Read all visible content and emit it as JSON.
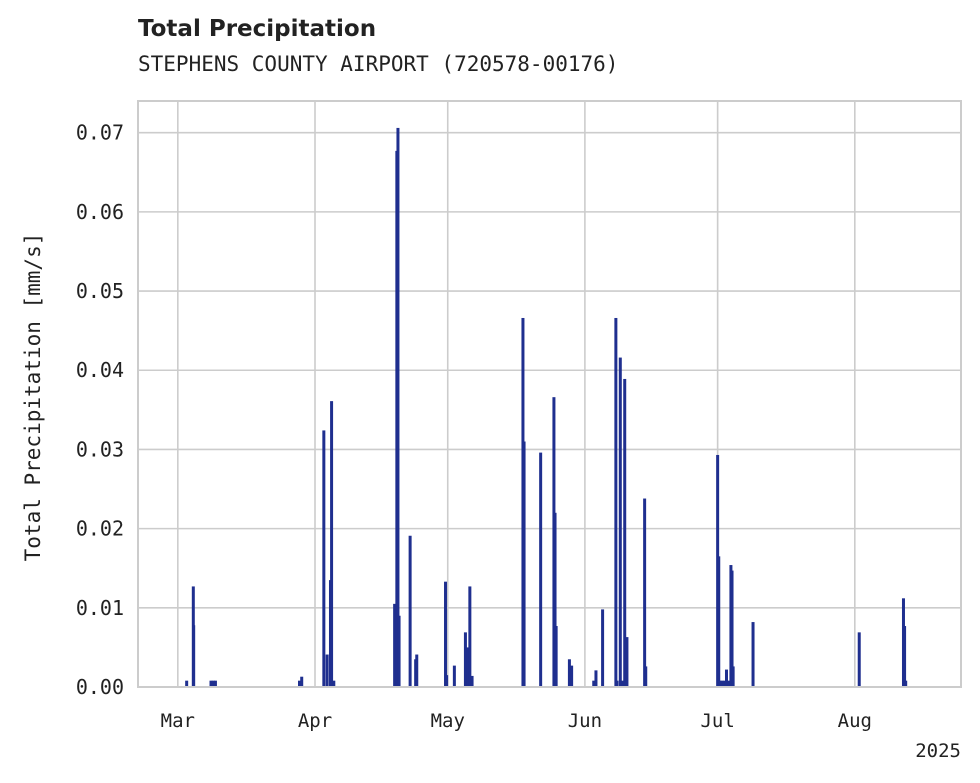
{
  "chart_data": {
    "type": "bar",
    "title": "Total Precipitation",
    "subtitle": "STEPHENS COUNTY AIRPORT (720578-00176)",
    "xlabel": "",
    "ylabel": "Total Precipitation [mm/s]",
    "xlim": [
      "2025-02-20",
      "2025-08-25"
    ],
    "ylim": [
      0,
      0.074
    ],
    "x_ticks": [
      {
        "date": "2025-03-01",
        "label": "Mar"
      },
      {
        "date": "2025-04-01",
        "label": "Apr"
      },
      {
        "date": "2025-05-01",
        "label": "May"
      },
      {
        "date": "2025-06-01",
        "label": "Jun"
      },
      {
        "date": "2025-07-01",
        "label": "Jul"
      },
      {
        "date": "2025-08-01",
        "label": "Aug"
      }
    ],
    "x_offset_label": "2025",
    "y_ticks": [
      0.0,
      0.01,
      0.02,
      0.03,
      0.04,
      0.05,
      0.06,
      0.07
    ],
    "y_tick_labels": [
      "0.00",
      "0.01",
      "0.02",
      "0.03",
      "0.04",
      "0.05",
      "0.06",
      "0.07"
    ],
    "grid": true,
    "legend": "none",
    "bar_color": "#1f2f8f",
    "series": [
      {
        "values": [
          {
            "x": "2025-03-03",
            "y": 0.0008
          },
          {
            "x": "2025-03-04T12:00",
            "y": 0.0127
          },
          {
            "x": "2025-03-04T14:00",
            "y": 0.0078
          },
          {
            "x": "2025-03-08T12:00",
            "y": 0.0008
          },
          {
            "x": "2025-03-09",
            "y": 0.0008
          },
          {
            "x": "2025-03-09T12:00",
            "y": 0.0008
          },
          {
            "x": "2025-03-28T12:00",
            "y": 0.0008
          },
          {
            "x": "2025-03-29",
            "y": 0.0013
          },
          {
            "x": "2025-04-03",
            "y": 0.0324
          },
          {
            "x": "2025-04-03T18:00",
            "y": 0.0041
          },
          {
            "x": "2025-04-04T12:00",
            "y": 0.0135
          },
          {
            "x": "2025-04-04T18:00",
            "y": 0.0361
          },
          {
            "x": "2025-04-05T06:00",
            "y": 0.0008
          },
          {
            "x": "2025-04-19",
            "y": 0.0105
          },
          {
            "x": "2025-04-19T12:00",
            "y": 0.0677
          },
          {
            "x": "2025-04-19T18:00",
            "y": 0.0706
          },
          {
            "x": "2025-04-20",
            "y": 0.009
          },
          {
            "x": "2025-04-22T12:00",
            "y": 0.0191
          },
          {
            "x": "2025-04-23T18:00",
            "y": 0.0035
          },
          {
            "x": "2025-04-24",
            "y": 0.0041
          },
          {
            "x": "2025-04-30T12:00",
            "y": 0.0133
          },
          {
            "x": "2025-04-30T18:00",
            "y": 0.0015
          },
          {
            "x": "2025-05-02T12:00",
            "y": 0.0027
          },
          {
            "x": "2025-05-05",
            "y": 0.0069
          },
          {
            "x": "2025-05-05T12:00",
            "y": 0.005
          },
          {
            "x": "2025-05-06",
            "y": 0.0127
          },
          {
            "x": "2025-05-06T12:00",
            "y": 0.0014
          },
          {
            "x": "2025-05-18",
            "y": 0.0466
          },
          {
            "x": "2025-05-18T06:00",
            "y": 0.031
          },
          {
            "x": "2025-05-22",
            "y": 0.0296
          },
          {
            "x": "2025-05-25",
            "y": 0.0366
          },
          {
            "x": "2025-05-25T06:00",
            "y": 0.022
          },
          {
            "x": "2025-05-25T12:00",
            "y": 0.0077
          },
          {
            "x": "2025-05-28T12:00",
            "y": 0.0035
          },
          {
            "x": "2025-05-29",
            "y": 0.0027
          },
          {
            "x": "2025-06-03",
            "y": 0.0008
          },
          {
            "x": "2025-06-03T12:00",
            "y": 0.0021
          },
          {
            "x": "2025-06-05",
            "y": 0.0098
          },
          {
            "x": "2025-06-08",
            "y": 0.0466
          },
          {
            "x": "2025-06-08T06:00",
            "y": 0.0008
          },
          {
            "x": "2025-06-09",
            "y": 0.0416
          },
          {
            "x": "2025-06-09T12:00",
            "y": 0.0008
          },
          {
            "x": "2025-06-10",
            "y": 0.0389
          },
          {
            "x": "2025-06-10T12:00",
            "y": 0.0063
          },
          {
            "x": "2025-06-14T12:00",
            "y": 0.0238
          },
          {
            "x": "2025-06-14T18:00",
            "y": 0.0026
          },
          {
            "x": "2025-07-01",
            "y": 0.0293
          },
          {
            "x": "2025-07-01T06:00",
            "y": 0.0165
          },
          {
            "x": "2025-07-01T12:00",
            "y": 0.0008
          },
          {
            "x": "2025-07-02",
            "y": 0.0008
          },
          {
            "x": "2025-07-02T12:00",
            "y": 0.0008
          },
          {
            "x": "2025-07-03",
            "y": 0.0022
          },
          {
            "x": "2025-07-03T12:00",
            "y": 0.0008
          },
          {
            "x": "2025-07-04",
            "y": 0.0154
          },
          {
            "x": "2025-07-04T06:00",
            "y": 0.0147
          },
          {
            "x": "2025-07-04T12:00",
            "y": 0.0026
          },
          {
            "x": "2025-07-09",
            "y": 0.0082
          },
          {
            "x": "2025-08-02",
            "y": 0.0069
          },
          {
            "x": "2025-08-12",
            "y": 0.0112
          },
          {
            "x": "2025-08-12T06:00",
            "y": 0.0077
          },
          {
            "x": "2025-08-12T12:00",
            "y": 0.0008
          }
        ]
      }
    ]
  }
}
